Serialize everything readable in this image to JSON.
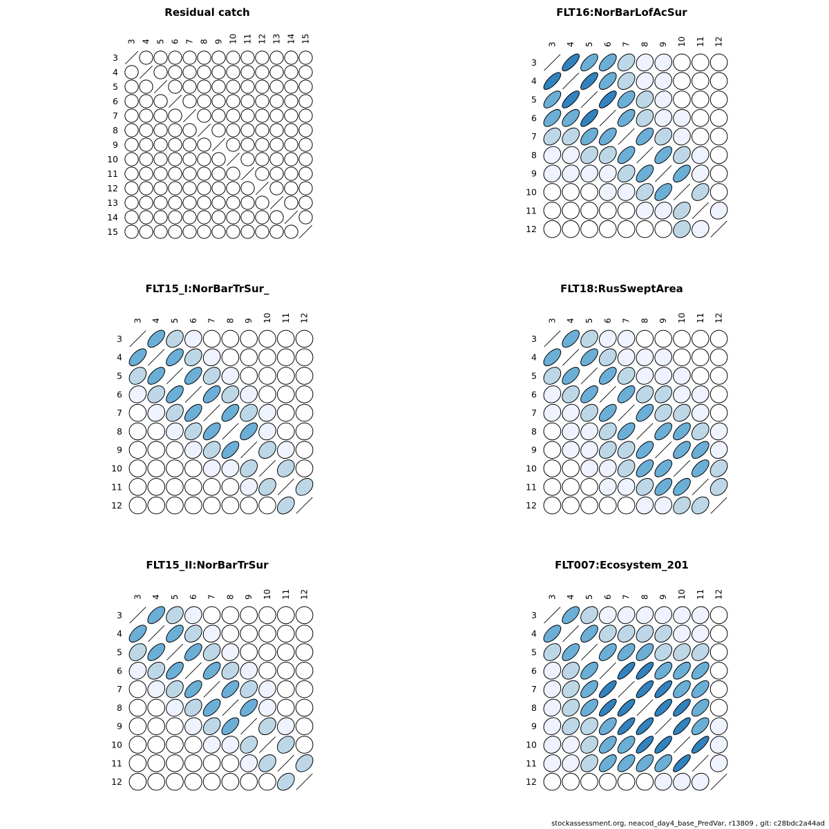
{
  "chart_data": [
    {
      "type": "heatmap",
      "title": "Residual catch",
      "ages": [
        "3",
        "4",
        "5",
        "6",
        "7",
        "8",
        "9",
        "10",
        "11",
        "12",
        "13",
        "14",
        "15"
      ],
      "correlation": [
        [
          1,
          0,
          0,
          0,
          0,
          0,
          0,
          0,
          0,
          0,
          0,
          0,
          0
        ],
        [
          0,
          1,
          0,
          0,
          0,
          0,
          0,
          0,
          0,
          0,
          0,
          0,
          0
        ],
        [
          0,
          0,
          1,
          0,
          0,
          0,
          0,
          0,
          0,
          0,
          0,
          0,
          0
        ],
        [
          0,
          0,
          0,
          1,
          0,
          0,
          0,
          0,
          0,
          0,
          0,
          0,
          0
        ],
        [
          0,
          0,
          0,
          0,
          1,
          0,
          0,
          0,
          0,
          0,
          0,
          0,
          0
        ],
        [
          0,
          0,
          0,
          0,
          0,
          1,
          0,
          0,
          0,
          0,
          0,
          0,
          0
        ],
        [
          0,
          0,
          0,
          0,
          0,
          0,
          1,
          0,
          0,
          0,
          0,
          0,
          0
        ],
        [
          0,
          0,
          0,
          0,
          0,
          0,
          0,
          1,
          0,
          0,
          0,
          0,
          0
        ],
        [
          0,
          0,
          0,
          0,
          0,
          0,
          0,
          0,
          1,
          0,
          0,
          0,
          0
        ],
        [
          0,
          0,
          0,
          0,
          0,
          0,
          0,
          0,
          0,
          1,
          0,
          0,
          0
        ],
        [
          0,
          0,
          0,
          0,
          0,
          0,
          0,
          0,
          0,
          0,
          1,
          0,
          0
        ],
        [
          0,
          0,
          0,
          0,
          0,
          0,
          0,
          0,
          0,
          0,
          0,
          1,
          0
        ],
        [
          0,
          0,
          0,
          0,
          0,
          0,
          0,
          0,
          0,
          0,
          0,
          0,
          1
        ]
      ]
    },
    {
      "type": "heatmap",
      "title": "FLT16:NorBarLofAcSur",
      "ages": [
        "3",
        "4",
        "5",
        "6",
        "7",
        "8",
        "9",
        "10",
        "11",
        "12"
      ],
      "correlation": [
        [
          1,
          0.75,
          0.65,
          0.6,
          0.35,
          0.12,
          0.08,
          0,
          0,
          0
        ],
        [
          0.75,
          1,
          0.75,
          0.6,
          0.35,
          0.15,
          0.1,
          0,
          0,
          0
        ],
        [
          0.65,
          0.75,
          1,
          0.75,
          0.55,
          0.25,
          0.12,
          0,
          0,
          0
        ],
        [
          0.6,
          0.6,
          0.75,
          1,
          0.6,
          0.3,
          0.12,
          0.05,
          0,
          0
        ],
        [
          0.35,
          0.35,
          0.55,
          0.6,
          1,
          0.6,
          0.3,
          0.08,
          0,
          0
        ],
        [
          0.12,
          0.15,
          0.3,
          0.3,
          0.6,
          1,
          0.6,
          0.3,
          0.1,
          0
        ],
        [
          0.08,
          0.1,
          0.12,
          0.12,
          0.3,
          0.6,
          1,
          0.6,
          0.15,
          0
        ],
        [
          0,
          0,
          0,
          0.05,
          0.08,
          0.3,
          0.55,
          1,
          0.35,
          0
        ],
        [
          0,
          0,
          0,
          0,
          0,
          0.1,
          0.15,
          0.35,
          1,
          0.12
        ],
        [
          0,
          0,
          0,
          0,
          0,
          0,
          0,
          0.2,
          0.12,
          1
        ]
      ]
    },
    {
      "type": "heatmap",
      "title": "FLT15_I:NorBarTrSur_",
      "ages": [
        "3",
        "4",
        "5",
        "6",
        "7",
        "8",
        "9",
        "10",
        "11",
        "12"
      ],
      "correlation": [
        [
          1,
          0.6,
          0.3,
          0.1,
          0,
          0,
          0,
          0,
          0,
          0
        ],
        [
          0.6,
          1,
          0.6,
          0.3,
          0.1,
          0,
          0,
          0,
          0,
          0
        ],
        [
          0.3,
          0.6,
          1,
          0.6,
          0.3,
          0.1,
          0,
          0,
          0,
          0
        ],
        [
          0.1,
          0.3,
          0.6,
          1,
          0.6,
          0.3,
          0.1,
          0,
          0,
          0
        ],
        [
          0,
          0.1,
          0.3,
          0.6,
          1,
          0.6,
          0.3,
          0.1,
          0,
          0
        ],
        [
          0,
          0,
          0.1,
          0.3,
          0.6,
          1,
          0.6,
          0.1,
          0,
          0
        ],
        [
          0,
          0,
          0,
          0.1,
          0.3,
          0.6,
          1,
          0.3,
          0.1,
          0
        ],
        [
          0,
          0,
          0,
          0,
          0.1,
          0.1,
          0.3,
          1,
          0.3,
          0
        ],
        [
          0,
          0,
          0,
          0,
          0,
          0,
          0.1,
          0.3,
          1,
          0.35
        ],
        [
          0,
          0,
          0,
          0,
          0,
          0,
          0,
          0,
          0.35,
          1
        ]
      ]
    },
    {
      "type": "heatmap",
      "title": "FLT18:RusSweptArea",
      "ages": [
        "3",
        "4",
        "5",
        "6",
        "7",
        "8",
        "9",
        "10",
        "11",
        "12"
      ],
      "correlation": [
        [
          1,
          0.6,
          0.3,
          0.12,
          0.08,
          0,
          0,
          0,
          0,
          0
        ],
        [
          0.6,
          1,
          0.6,
          0.3,
          0.12,
          0.08,
          0.05,
          0,
          0,
          0
        ],
        [
          0.3,
          0.6,
          1,
          0.6,
          0.3,
          0.12,
          0.1,
          0.05,
          0,
          0
        ],
        [
          0.12,
          0.3,
          0.6,
          1,
          0.6,
          0.3,
          0.3,
          0.12,
          0.08,
          0
        ],
        [
          0.08,
          0.12,
          0.3,
          0.6,
          1,
          0.6,
          0.3,
          0.3,
          0.1,
          0
        ],
        [
          0,
          0.08,
          0.12,
          0.3,
          0.6,
          1,
          0.6,
          0.6,
          0.3,
          0.1
        ],
        [
          0,
          0.05,
          0.1,
          0.3,
          0.3,
          0.6,
          1,
          0.6,
          0.6,
          0.1
        ],
        [
          0,
          0,
          0.05,
          0.12,
          0.3,
          0.6,
          0.6,
          1,
          0.6,
          0.3
        ],
        [
          0,
          0,
          0,
          0.08,
          0.1,
          0.3,
          0.6,
          0.6,
          1,
          0.3
        ],
        [
          0,
          0,
          0,
          0,
          0,
          0.1,
          0.1,
          0.3,
          0.3,
          1
        ]
      ]
    },
    {
      "type": "heatmap",
      "title": "FLT15_II:NorBarTrSur",
      "ages": [
        "3",
        "4",
        "5",
        "6",
        "7",
        "8",
        "9",
        "10",
        "11",
        "12"
      ],
      "correlation": [
        [
          1,
          0.6,
          0.3,
          0.1,
          0,
          0,
          0,
          0,
          0,
          0
        ],
        [
          0.6,
          1,
          0.6,
          0.3,
          0.1,
          0,
          0,
          0,
          0,
          0
        ],
        [
          0.3,
          0.6,
          1,
          0.6,
          0.3,
          0.1,
          0,
          0,
          0,
          0
        ],
        [
          0.1,
          0.3,
          0.6,
          1,
          0.6,
          0.3,
          0.1,
          0,
          0,
          0
        ],
        [
          0,
          0.1,
          0.3,
          0.6,
          1,
          0.6,
          0.3,
          0.1,
          0,
          0
        ],
        [
          0,
          0,
          0.1,
          0.3,
          0.6,
          1,
          0.6,
          0.1,
          0,
          0
        ],
        [
          0,
          0,
          0,
          0.1,
          0.3,
          0.6,
          1,
          0.3,
          0.1,
          0
        ],
        [
          0,
          0,
          0,
          0,
          0.1,
          0.1,
          0.3,
          1,
          0.3,
          0
        ],
        [
          0,
          0,
          0,
          0,
          0,
          0,
          0.1,
          0.3,
          1,
          0.35
        ],
        [
          0,
          0,
          0,
          0,
          0,
          0,
          0,
          0,
          0.35,
          1
        ]
      ]
    },
    {
      "type": "heatmap",
      "title": "FLT007:Ecosystem_201",
      "ages": [
        "3",
        "4",
        "5",
        "6",
        "7",
        "8",
        "9",
        "10",
        "11",
        "12"
      ],
      "correlation": [
        [
          1,
          0.6,
          0.3,
          0.12,
          0.12,
          0.15,
          0.12,
          0.1,
          0.08,
          0
        ],
        [
          0.6,
          1,
          0.6,
          0.3,
          0.3,
          0.3,
          0.3,
          0.12,
          0.1,
          0
        ],
        [
          0.3,
          0.6,
          1,
          0.6,
          0.6,
          0.6,
          0.3,
          0.3,
          0.3,
          0
        ],
        [
          0.12,
          0.3,
          0.6,
          1,
          0.8,
          0.8,
          0.6,
          0.6,
          0.6,
          0
        ],
        [
          0.12,
          0.3,
          0.6,
          0.8,
          1,
          0.8,
          0.8,
          0.6,
          0.6,
          0
        ],
        [
          0.15,
          0.3,
          0.6,
          0.8,
          0.8,
          1,
          0.8,
          0.8,
          0.6,
          0
        ],
        [
          0.12,
          0.3,
          0.3,
          0.6,
          0.8,
          0.8,
          1,
          0.8,
          0.6,
          0.08
        ],
        [
          0.1,
          0.12,
          0.3,
          0.6,
          0.6,
          0.8,
          0.8,
          1,
          0.8,
          0.1
        ],
        [
          0.08,
          0.12,
          0.3,
          0.6,
          0.6,
          0.6,
          0.6,
          0.8,
          1,
          0.1
        ],
        [
          0,
          0,
          0,
          0,
          0,
          0,
          0.08,
          0.1,
          0.1,
          1
        ]
      ]
    }
  ],
  "footer": "stockassessment.org, neacod_day4_base_PredVar, r13809 , git: c28bdc2a44ad"
}
